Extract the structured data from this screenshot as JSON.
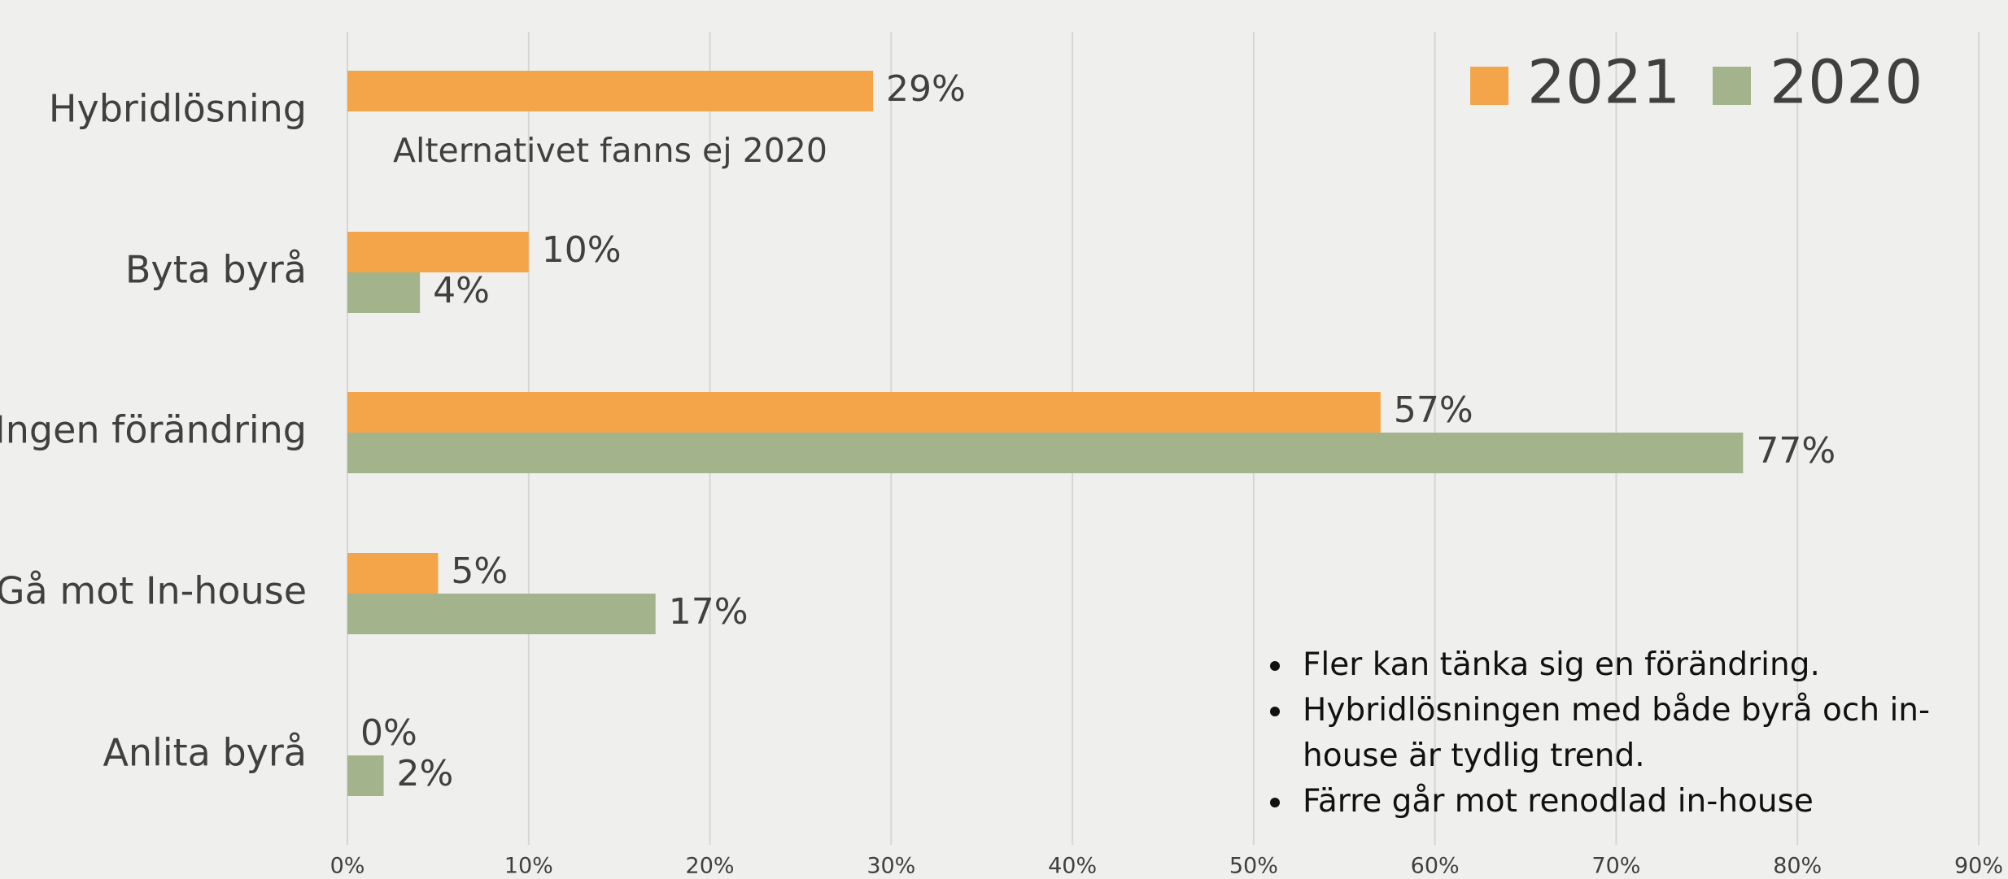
{
  "chart_data": {
    "type": "hbar",
    "categories": [
      "Hybridlösning",
      "Byta byrå",
      "Ingen förändring",
      "Gå mot In-house",
      "Anlita byrå"
    ],
    "series": [
      {
        "name": "2021",
        "color": "#f4a54a",
        "values": [
          29,
          10,
          57,
          5,
          0
        ],
        "value_labels": [
          "29%",
          "10%",
          "57%",
          "5%",
          "0%"
        ]
      },
      {
        "name": "2020",
        "color": "#a3b48c",
        "values": [
          null,
          4,
          77,
          17,
          2
        ],
        "value_labels": [
          null,
          "4%",
          "77%",
          "17%",
          "2%"
        ]
      }
    ],
    "xlim": [
      0,
      90
    ],
    "xticks": [
      {
        "value": 0,
        "label": "0%"
      },
      {
        "value": 10,
        "label": "10%"
      },
      {
        "value": 20,
        "label": "20%"
      },
      {
        "value": 30,
        "label": "30%"
      },
      {
        "value": 40,
        "label": "40%"
      },
      {
        "value": 50,
        "label": "50%"
      },
      {
        "value": 60,
        "label": "60%"
      },
      {
        "value": 70,
        "label": "70%"
      },
      {
        "value": 80,
        "label": "80%"
      },
      {
        "value": 90,
        "label": "90%"
      }
    ],
    "grid": true,
    "legend": "top-right",
    "annotation": "Alternativet fanns ej 2020",
    "notes": [
      "Fler kan tänka sig en förändring.",
      "Hybridlösningen med både byrå och in-house är tydlig trend.",
      "Färre går mot renodlad in-house"
    ]
  }
}
